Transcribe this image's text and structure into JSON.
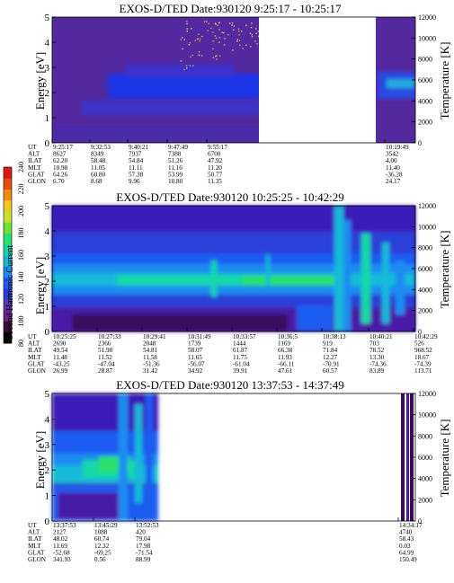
{
  "chart_data": {
    "type": "heatmap",
    "colorbar": {
      "label": "Second Harmonic Current",
      "ticks": [
        "80",
        "100",
        "120",
        "140",
        "160",
        "180",
        "200",
        "220",
        "240"
      ],
      "colors": [
        "#000000",
        "#3a0a3a",
        "#6b1f8a",
        "#5a33b0",
        "#2a3fd6",
        "#1f5cf0",
        "#1e8cf0",
        "#16b9d8",
        "#14d8a8",
        "#2ae06a",
        "#6ee23a",
        "#c8e030",
        "#f0c820",
        "#f08a14",
        "#e84a10",
        "#d81a10"
      ]
    },
    "panels": [
      {
        "title": "EXOS-D/TED   Date:930120  9:25:17 - 10:25:17",
        "ylabel_left": "Energy [eV]",
        "ylabel_right": "Temperature [K]",
        "yticks_left": [
          "0",
          "1",
          "2",
          "3",
          "4",
          "5"
        ],
        "yticks_right": [
          "0",
          "2000",
          "4000",
          "6000",
          "8000",
          "10000",
          "12000"
        ],
        "ylim_left": [
          0,
          5
        ],
        "ylim_right": [
          0,
          12000
        ],
        "data_segments": [
          [
            0.0,
            0.45
          ],
          [
            0.89,
            1.0
          ]
        ],
        "table": {
          "rows": [
            "UT",
            "ALT",
            "ILAT",
            "MLT",
            "GLAT",
            "GLON"
          ],
          "columns": [
            {
              "UT": "9:25:17",
              "ALT": "8627",
              "ILAT": "62.20",
              "MLT": "10.98",
              "GLAT": "64.26",
              "GLON": "6.70"
            },
            {
              "UT": "9:32:53",
              "ALT": "8349",
              "ILAT": "58.48",
              "MLT": "11.05",
              "GLAT": "60.80",
              "GLON": "8.68"
            },
            {
              "UT": "9:40:21",
              "ALT": "7937",
              "ILAT": "54.84",
              "MLT": "11.11",
              "GLAT": "57.38",
              "GLON": "9.96"
            },
            {
              "UT": "9:47:49",
              "ALT": "7388",
              "ILAT": "51.26",
              "MLT": "11.16",
              "GLAT": "53.99",
              "GLON": "10.80"
            },
            {
              "UT": "9:55:17",
              "ALT": "6700",
              "ILAT": "47.92",
              "MLT": "11.20",
              "GLAT": "50.77",
              "GLON": "11.35"
            },
            {
              "UT": "10:19:49",
              "ALT": "3542",
              "ILAT": "4.00",
              "MLT": "11.40",
              "GLAT": "-36.28",
              "GLON": "24.17"
            }
          ]
        }
      },
      {
        "title": "EXOS-D/TED   Date:930120  10:25:25 - 10:42:29",
        "ylabel_left": "Energy [eV]",
        "ylabel_right": "Temperature [K]",
        "yticks_left": [
          "0",
          "1",
          "2",
          "3",
          "4",
          "5"
        ],
        "yticks_right": [
          "0",
          "2000",
          "4000",
          "6000",
          "8000",
          "10000",
          "12000"
        ],
        "ylim_left": [
          0,
          5
        ],
        "ylim_right": [
          0,
          12000
        ],
        "data_segments": [
          [
            0.0,
            1.0
          ]
        ],
        "table": {
          "rows": [
            "UT",
            "ALT",
            "ILAT",
            "MLT",
            "GLAT",
            "GLON"
          ],
          "columns": [
            {
              "UT": "10:25:25",
              "ALT": "2690",
              "ILAT": "49.54",
              "MLT": "11.48",
              "GLAT": "-43.25",
              "GLON": "26.99"
            },
            {
              "UT": "10:27:33",
              "ALT": "2366",
              "ILAT": "51.98",
              "MLT": "11.52",
              "GLAT": "-47.04",
              "GLON": "28.87"
            },
            {
              "UT": "10:29:41",
              "ALT": "2048",
              "ILAT": "54.81",
              "MLT": "11.58",
              "GLAT": "-51.36",
              "GLON": "31.42"
            },
            {
              "UT": "10:31:49",
              "ALT": "1739",
              "ILAT": "58.07",
              "MLT": "11.65",
              "GLAT": "-56.07",
              "GLON": "34.92"
            },
            {
              "UT": "10:33:57",
              "ALT": "1444",
              "ILAT": "61.87",
              "MLT": "11.75",
              "GLAT": "-61.04",
              "GLON": "39.91"
            },
            {
              "UT": "10:36:5",
              "ALT": "1169",
              "ILAT": "66.38",
              "MLT": "11.93",
              "GLAT": "-66.11",
              "GLON": "47.61"
            },
            {
              "UT": "10:38:13",
              "ALT": "919",
              "ILAT": "71.84",
              "MLT": "12.27",
              "GLAT": "-70.91",
              "GLON": "60.57"
            },
            {
              "UT": "10:40:21",
              "ALT": "703",
              "ILAT": "78.52",
              "MLT": "13.30",
              "GLAT": "-74.36",
              "GLON": "83.89"
            },
            {
              "UT": "10:42:29",
              "ALT": "526",
              "ILAT": "968.52",
              "MLT": "18.67",
              "GLAT": "-74.39",
              "GLON": "113.71"
            }
          ]
        }
      },
      {
        "title": "EXOS-D/TED   Date:930120  13:37:53 - 14:37:49",
        "ylabel_left": "Energy [eV]",
        "ylabel_right": "Temperature [K]",
        "yticks_left": [
          "0",
          "1",
          "2",
          "3",
          "4",
          "5"
        ],
        "yticks_right": [
          "0",
          "2000",
          "4000",
          "6000",
          "8000",
          "10000",
          "12000"
        ],
        "ylim_left": [
          0,
          5
        ],
        "ylim_right": [
          0,
          12000
        ],
        "data_segments": [
          [
            0.0,
            0.29
          ],
          [
            0.96,
            0.985
          ]
        ],
        "table": {
          "rows": [
            "UT",
            "ALT",
            "ILAT",
            "MLT",
            "GLAT",
            "GLON"
          ],
          "columns": [
            {
              "UT": "13:37:53",
              "ALT": "2127",
              "ILAT": "48.02",
              "MLT": "11.69",
              "GLAT": "-52.68",
              "GLON": "341.93"
            },
            {
              "UT": "13:45:29",
              "ALT": "1088",
              "ILAT": "60.74",
              "MLT": "12.32",
              "GLAT": "-69.25",
              "GLON": "0.56"
            },
            {
              "UT": "13:52:53",
              "ALT": "420",
              "ILAT": "79.04",
              "MLT": "17.98",
              "GLAT": "-71.54",
              "GLON": "88.99"
            },
            {
              "UT": "14:34:17",
              "ALT": "4740",
              "ILAT": "58.43",
              "MLT": "0.03",
              "GLAT": "64.99",
              "GLON": "150.49"
            }
          ]
        }
      }
    ]
  }
}
